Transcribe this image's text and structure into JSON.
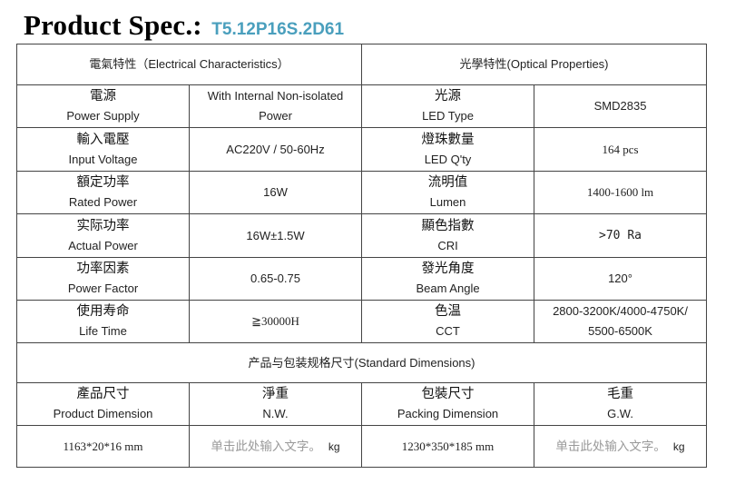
{
  "header": {
    "title": "Product Spec.:",
    "model": "T5.12P16S.2D61"
  },
  "sections": {
    "electrical": "電氣特性（Electrical Characteristics）",
    "optical": "光學特性(Optical Properties)",
    "dimensions": "产品与包装规格尺寸(Standard Dimensions)"
  },
  "rows": [
    {
      "l_zh": "電源",
      "l_en": "Power Supply",
      "l_val": "With Internal Non-isolated Power",
      "r_zh": "光源",
      "r_en": "LED Type",
      "r_val": "SMD2835"
    },
    {
      "l_zh": "輸入電壓",
      "l_en": "Input Voltage",
      "l_val": "AC220V / 50-60Hz",
      "r_zh": "燈珠數量",
      "r_en": "LED Q'ty",
      "r_val": "164 pcs"
    },
    {
      "l_zh": "額定功率",
      "l_en": "Rated Power",
      "l_val": "16W",
      "r_zh": "流明值",
      "r_en": "Lumen",
      "r_val": "1400-1600 lm"
    },
    {
      "l_zh": "实际功率",
      "l_en": "Actual Power",
      "l_val": "16W±1.5W",
      "r_zh": "顯色指數",
      "r_en": "CRI",
      "r_val": ">70 Ra"
    },
    {
      "l_zh": "功率因素",
      "l_en": "Power Factor",
      "l_val": "0.65-0.75",
      "r_zh": "發光角度",
      "r_en": "Beam Angle",
      "r_val": "120°"
    },
    {
      "l_zh": "使用寿命",
      "l_en": "Life Time",
      "l_val": "≧30000H",
      "r_zh": "色温",
      "r_en": "CCT",
      "r_val": "2800-3200K/4000-4750K/ 5500-6500K"
    }
  ],
  "dimensions": {
    "headers": [
      {
        "zh": "產品尺寸",
        "en": "Product Dimension"
      },
      {
        "zh": "淨重",
        "en": "N.W."
      },
      {
        "zh": "包裝尺寸",
        "en": "Packing Dimension"
      },
      {
        "zh": "毛重",
        "en": "G.W."
      }
    ],
    "product_dimension": "1163*20*16 mm",
    "nw_placeholder": "单击此处输入文字。",
    "nw_unit": "kg",
    "packing_dimension": "1230*350*185 mm",
    "gw_placeholder": "单击此处输入文字。",
    "gw_unit": "kg"
  }
}
